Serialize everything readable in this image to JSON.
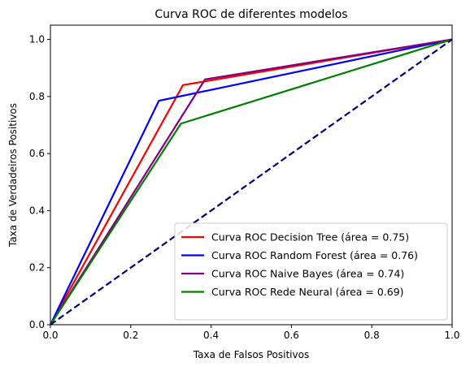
{
  "chart_data": {
    "type": "line",
    "title": "Curva ROC de diferentes modelos",
    "xlabel": "Taxa de Falsos Positivos",
    "ylabel": "Taxa de Verdadeiros Positivos",
    "xlim": [
      0.0,
      1.0
    ],
    "ylim": [
      0.0,
      1.05
    ],
    "xticks": [
      0.0,
      0.2,
      0.4,
      0.6,
      0.8,
      1.0
    ],
    "yticks": [
      0.0,
      0.2,
      0.4,
      0.6,
      0.8,
      1.0
    ],
    "xtick_labels": [
      "0.0",
      "0.2",
      "0.4",
      "0.6",
      "0.8",
      "1.0"
    ],
    "ytick_labels": [
      "0.0",
      "0.2",
      "0.4",
      "0.6",
      "0.8",
      "1.0"
    ],
    "grid": false,
    "legend_position": "lower-right",
    "series": [
      {
        "name": "Curva ROC Decision Tree (área = 0.75)",
        "color": "#ff0000",
        "style": "solid",
        "x": [
          0.0,
          0.33,
          1.0
        ],
        "y": [
          0.0,
          0.84,
          1.0
        ]
      },
      {
        "name": "Curva ROC Random Forest (área = 0.76)",
        "color": "#0000ff",
        "style": "solid",
        "x": [
          0.0,
          0.27,
          1.0
        ],
        "y": [
          0.0,
          0.785,
          1.0
        ]
      },
      {
        "name": "Curva ROC Naive Bayes (área = 0.74)",
        "color": "#800080",
        "style": "solid",
        "x": [
          0.0,
          0.385,
          1.0
        ],
        "y": [
          0.0,
          0.86,
          1.0
        ]
      },
      {
        "name": "Curva ROC Rede Neural (área = 0.69)",
        "color": "#008000",
        "style": "solid",
        "x": [
          0.0,
          0.325,
          1.0
        ],
        "y": [
          0.0,
          0.705,
          1.0
        ]
      }
    ],
    "reference_line": {
      "color": "#000080",
      "style": "dashed",
      "x": [
        0.0,
        1.0
      ],
      "y": [
        0.0,
        1.0
      ]
    }
  }
}
